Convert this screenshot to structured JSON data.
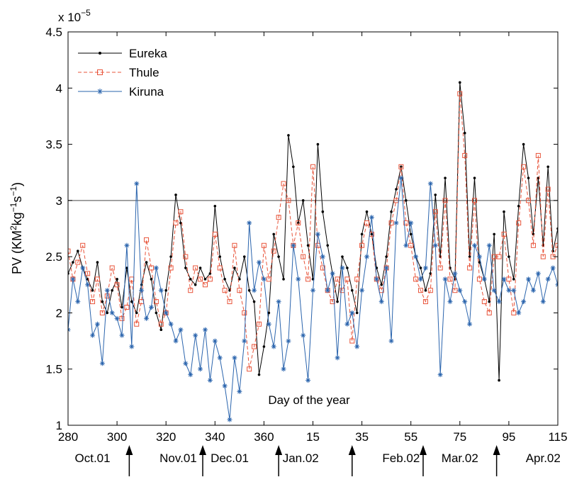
{
  "chart_data": {
    "type": "line",
    "title": "",
    "xlabel": "Day of the year",
    "ylabel": "PV (KM²kg⁻¹s⁻¹)",
    "ylabel_parts": {
      "pre": "PV (KM",
      "sup1": "2",
      "mid1": "kg",
      "sup2": "−1",
      "mid2": "s",
      "sup3": "−1",
      "post": ")"
    },
    "y_exponent_label": {
      "base": "x 10",
      "exp": "−5"
    },
    "ylim": [
      1.0,
      4.5
    ],
    "yticks": [
      1,
      1.5,
      2,
      2.5,
      3,
      3.5,
      4,
      4.5
    ],
    "ytick_labels": [
      "1",
      "1.5",
      "2",
      "2.5",
      "3",
      "3.5",
      "4",
      "4.5"
    ],
    "xlim": [
      280,
      480
    ],
    "xtick_values": [
      280,
      300,
      320,
      340,
      360,
      380,
      400,
      420,
      440,
      460,
      480
    ],
    "xtick_labels": [
      "280",
      "300",
      "320",
      "340",
      "360",
      "15",
      "35",
      "55",
      "75",
      "95",
      "115"
    ],
    "month_labels": [
      {
        "label": "Oct.01",
        "x": 290
      },
      {
        "label": "Nov.01",
        "x": 325
      },
      {
        "label": "Dec.01",
        "x": 346
      },
      {
        "label": "Jan.02",
        "x": 375
      },
      {
        "label": "Feb.02",
        "x": 416
      },
      {
        "label": "Mar.02",
        "x": 440
      },
      {
        "label": "Apr.02",
        "x": 474
      }
    ],
    "arrow_markers": [
      305,
      335,
      366,
      396,
      425,
      455
    ],
    "reference_line": 3.0,
    "legend_position": "top-left",
    "colors": {
      "Eureka": "#000000",
      "Thule": "#e8543a",
      "Kiruna": "#2a64ad",
      "reference": "#6b6b6b"
    },
    "series": [
      {
        "name": "Eureka",
        "style": "solid-dot",
        "x": [
          280,
          282,
          284,
          286,
          288,
          290,
          292,
          294,
          296,
          298,
          300,
          302,
          304,
          306,
          308,
          310,
          312,
          314,
          316,
          318,
          320,
          322,
          324,
          326,
          328,
          330,
          332,
          334,
          336,
          338,
          340,
          342,
          344,
          346,
          348,
          350,
          352,
          354,
          356,
          358,
          360,
          362,
          364,
          366,
          368,
          370,
          372,
          374,
          376,
          378,
          380,
          382,
          384,
          386,
          388,
          390,
          392,
          394,
          396,
          398,
          400,
          402,
          404,
          406,
          408,
          410,
          412,
          414,
          416,
          418,
          420,
          422,
          424,
          426,
          428,
          430,
          432,
          434,
          436,
          438,
          440,
          442,
          444,
          446,
          448,
          450,
          452,
          454,
          456,
          458,
          460,
          462,
          464,
          466,
          468,
          470,
          472,
          474,
          476,
          478,
          480
        ],
        "values": [
          2.35,
          2.45,
          2.55,
          2.4,
          2.3,
          2.2,
          2.45,
          2.1,
          2.0,
          2.2,
          2.3,
          2.05,
          2.4,
          2.1,
          2.0,
          2.25,
          2.45,
          2.3,
          2.0,
          1.85,
          2.2,
          2.5,
          3.05,
          2.8,
          2.4,
          2.3,
          2.25,
          2.4,
          2.3,
          2.35,
          2.95,
          2.5,
          2.3,
          2.2,
          2.4,
          2.3,
          2.5,
          2.2,
          2.1,
          1.45,
          1.7,
          2.0,
          2.7,
          2.5,
          2.3,
          3.58,
          3.3,
          2.8,
          3.0,
          2.6,
          2.3,
          3.5,
          2.9,
          2.6,
          2.35,
          2.1,
          2.5,
          2.4,
          2.2,
          2.0,
          2.7,
          2.9,
          2.7,
          2.4,
          2.25,
          2.5,
          2.9,
          3.1,
          3.3,
          3.0,
          2.7,
          2.5,
          2.4,
          2.2,
          2.35,
          3.05,
          2.5,
          3.2,
          2.4,
          2.3,
          4.05,
          3.6,
          2.5,
          3.2,
          2.45,
          2.3,
          2.1,
          2.7,
          1.4,
          2.9,
          2.5,
          2.3,
          2.95,
          3.5,
          3.2,
          2.7,
          3.2,
          2.6,
          3.3,
          2.55,
          2.75
        ]
      },
      {
        "name": "Thule",
        "style": "dashed-square",
        "x": [
          280,
          282,
          284,
          286,
          288,
          290,
          292,
          294,
          296,
          298,
          300,
          302,
          304,
          306,
          308,
          310,
          312,
          314,
          316,
          318,
          320,
          322,
          324,
          326,
          328,
          330,
          332,
          334,
          336,
          338,
          340,
          342,
          344,
          346,
          348,
          350,
          352,
          354,
          356,
          358,
          360,
          362,
          364,
          366,
          368,
          370,
          372,
          374,
          376,
          378,
          380,
          382,
          384,
          386,
          388,
          390,
          392,
          394,
          396,
          398,
          400,
          402,
          404,
          406,
          408,
          410,
          412,
          414,
          416,
          418,
          420,
          422,
          424,
          426,
          428,
          430,
          432,
          434,
          436,
          438,
          440,
          442,
          444,
          446,
          448,
          450,
          452,
          454,
          456,
          458,
          460,
          462,
          464,
          466,
          468,
          470,
          472,
          474,
          476,
          478,
          480
        ],
        "values": [
          2.55,
          2.3,
          2.45,
          2.6,
          2.35,
          2.1,
          2.3,
          2.0,
          2.15,
          2.4,
          2.25,
          1.95,
          2.05,
          2.3,
          1.9,
          2.1,
          2.65,
          2.4,
          2.1,
          1.9,
          2.0,
          2.4,
          2.8,
          2.9,
          2.5,
          2.2,
          2.4,
          2.3,
          2.25,
          2.3,
          2.7,
          2.4,
          2.2,
          2.1,
          2.6,
          2.2,
          2.0,
          1.5,
          1.7,
          1.9,
          2.6,
          2.3,
          2.55,
          2.85,
          3.15,
          3.0,
          2.6,
          2.8,
          2.5,
          2.3,
          3.3,
          2.6,
          2.4,
          2.2,
          2.1,
          2.3,
          2.2,
          2.3,
          1.75,
          2.3,
          2.6,
          2.8,
          2.7,
          2.3,
          2.2,
          2.4,
          2.8,
          3.0,
          3.3,
          2.8,
          2.6,
          2.3,
          2.2,
          2.1,
          2.2,
          2.9,
          2.4,
          3.0,
          2.3,
          2.2,
          3.95,
          3.4,
          2.4,
          3.0,
          2.3,
          2.1,
          2.0,
          2.5,
          2.5,
          2.7,
          2.3,
          2.0,
          2.8,
          3.3,
          3.0,
          2.6,
          3.4,
          2.5,
          3.1,
          2.5,
          2.6
        ]
      },
      {
        "name": "Kiruna",
        "style": "solid-star",
        "x": [
          280,
          282,
          284,
          286,
          288,
          290,
          292,
          294,
          296,
          298,
          300,
          302,
          304,
          306,
          308,
          310,
          312,
          314,
          316,
          318,
          320,
          322,
          324,
          326,
          328,
          330,
          332,
          334,
          336,
          338,
          340,
          342,
          344,
          346,
          348,
          350,
          352,
          354,
          356,
          358,
          360,
          362,
          364,
          366,
          368,
          370,
          372,
          374,
          376,
          378,
          380,
          382,
          384,
          386,
          388,
          390,
          392,
          394,
          396,
          398,
          400,
          402,
          404,
          406,
          408,
          410,
          412,
          414,
          416,
          418,
          420,
          422,
          424,
          426,
          428,
          430,
          432,
          434,
          436,
          438,
          440,
          442,
          444,
          446,
          448,
          450,
          452,
          454,
          456,
          458,
          460,
          462,
          464,
          466,
          468,
          470,
          472,
          474,
          476,
          478,
          480
        ],
        "values": [
          1.85,
          2.3,
          2.1,
          2.4,
          2.25,
          1.8,
          1.9,
          1.55,
          2.2,
          2.0,
          1.95,
          1.8,
          2.6,
          1.7,
          3.15,
          2.2,
          1.95,
          2.05,
          2.4,
          2.2,
          2.0,
          1.9,
          1.75,
          1.85,
          1.55,
          1.45,
          1.8,
          1.5,
          1.85,
          1.4,
          1.75,
          1.6,
          1.35,
          1.05,
          1.6,
          1.3,
          1.75,
          2.8,
          2.2,
          2.45,
          2.3,
          1.9,
          1.7,
          2.1,
          1.5,
          1.75,
          2.6,
          2.3,
          1.8,
          1.4,
          2.2,
          2.7,
          2.5,
          2.2,
          2.35,
          1.6,
          2.4,
          1.9,
          2.0,
          1.7,
          2.2,
          2.5,
          2.85,
          2.3,
          2.1,
          2.4,
          1.75,
          2.8,
          3.2,
          2.6,
          2.8,
          2.5,
          2.3,
          2.4,
          3.15,
          2.6,
          1.45,
          2.3,
          2.1,
          2.35,
          2.2,
          2.1,
          1.9,
          2.6,
          2.5,
          2.3,
          2.6,
          2.2,
          2.1,
          2.3,
          2.2,
          2.2,
          2.0,
          2.1,
          2.3,
          2.2,
          2.35,
          2.1,
          2.3,
          2.4,
          2.25
        ]
      }
    ]
  }
}
